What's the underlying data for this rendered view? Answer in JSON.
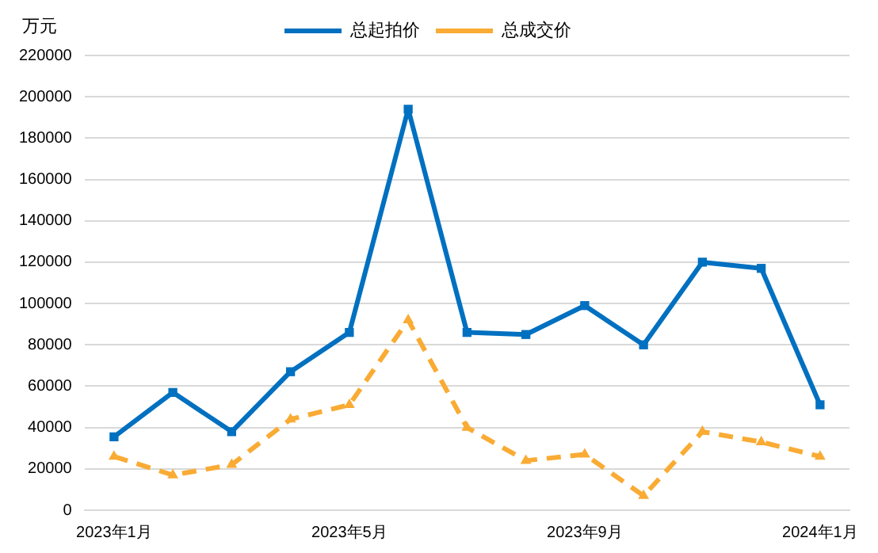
{
  "chart_data": {
    "type": "line",
    "ylabel": "万元",
    "categories": [
      "2023年1月",
      null,
      null,
      null,
      "2023年5月",
      null,
      null,
      null,
      "2023年9月",
      null,
      null,
      null,
      "2024年1月"
    ],
    "series": [
      {
        "name": "总起拍价",
        "color": "#0070c0",
        "marker": "square",
        "line_style": "solid",
        "values": [
          35500,
          57000,
          38000,
          67000,
          86000,
          194000,
          86000,
          85000,
          99000,
          80000,
          120000,
          117000,
          51000
        ]
      },
      {
        "name": "总成交价",
        "color": "#f9ab33",
        "marker": "triangle",
        "line_style": "dashed",
        "values": [
          26000,
          17000,
          22000,
          44000,
          51000,
          92000,
          40000,
          24000,
          27000,
          7000,
          38000,
          33000,
          26000
        ]
      }
    ],
    "ylim": [
      0,
      220000
    ],
    "yticks": [
      0,
      20000,
      40000,
      60000,
      80000,
      100000,
      120000,
      140000,
      160000,
      180000,
      200000,
      220000
    ],
    "grid": "y",
    "legend": "top"
  }
}
